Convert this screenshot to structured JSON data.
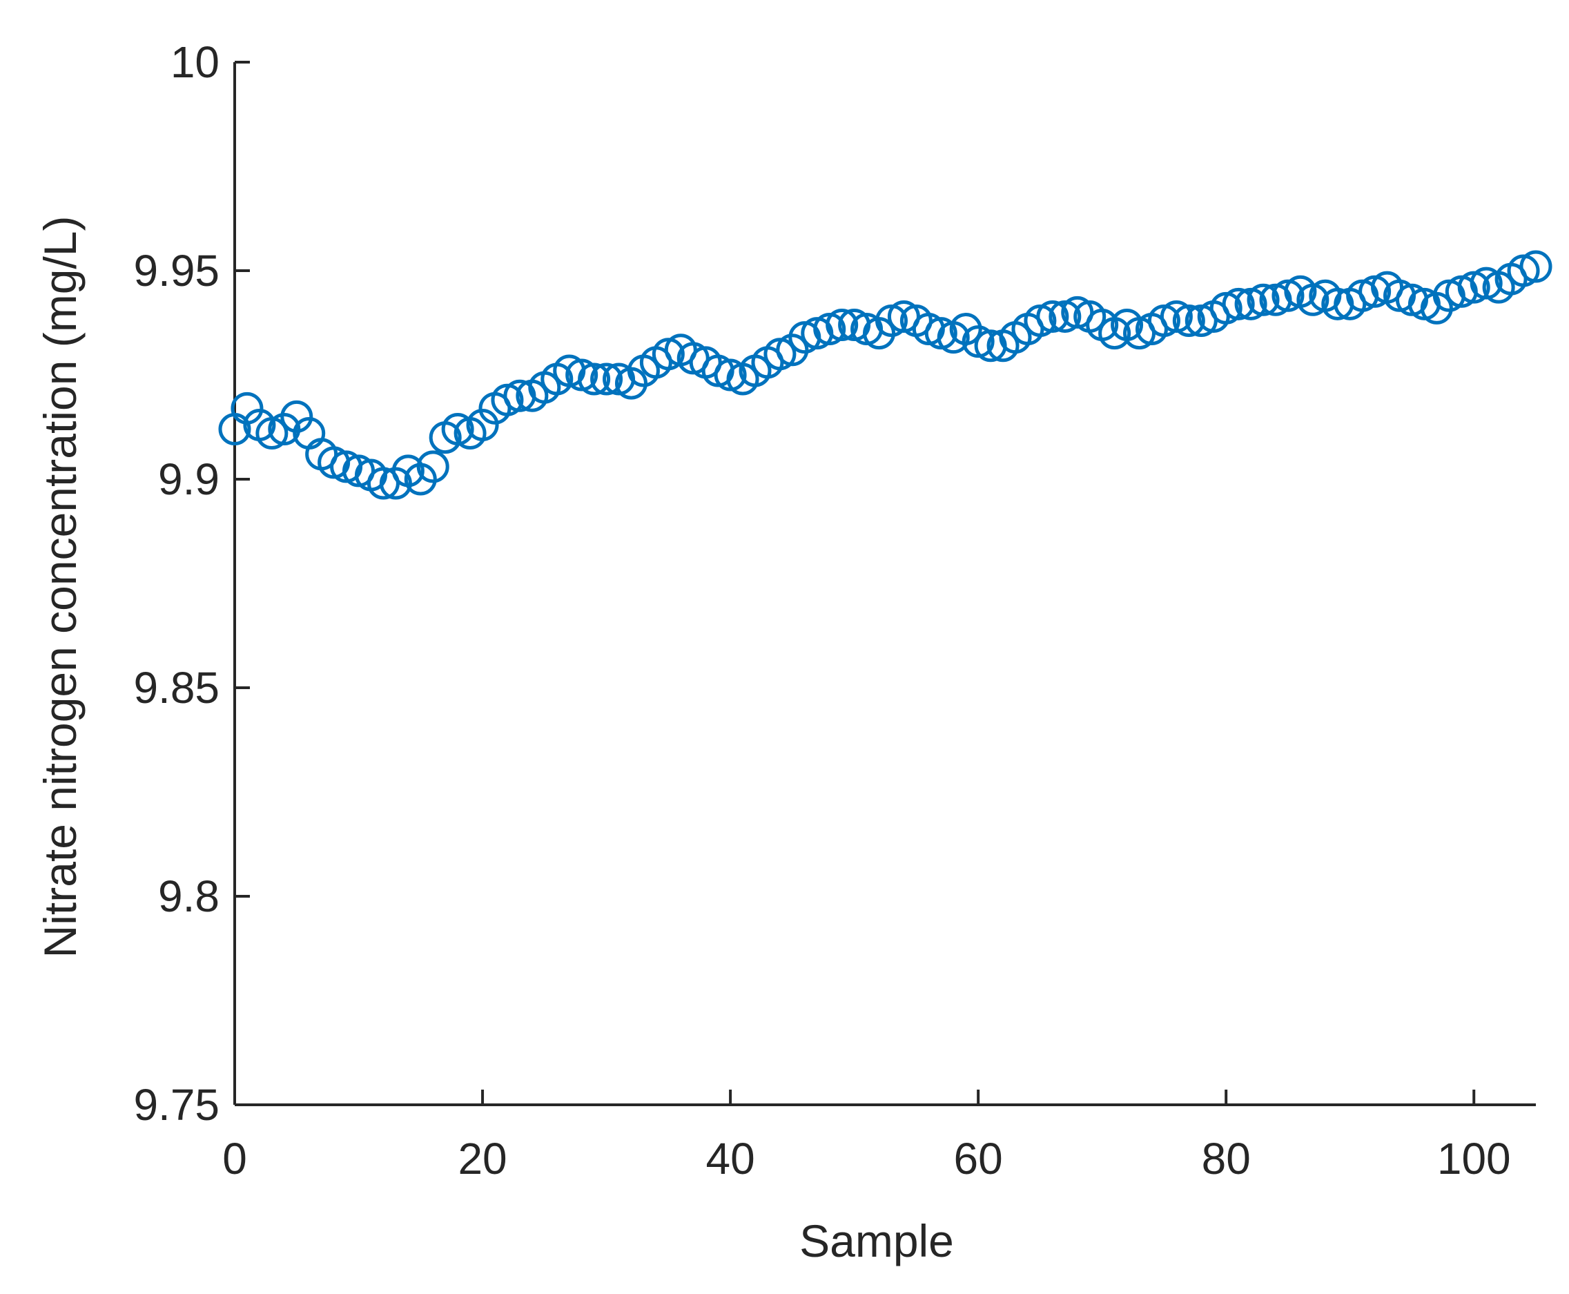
{
  "chart_data": {
    "type": "scatter",
    "title": "",
    "xlabel": "Sample",
    "ylabel": "Nitrate nitrogen concentration (mg/L)",
    "xlim": [
      0,
      105
    ],
    "ylim": [
      9.75,
      10
    ],
    "xticks": [
      0,
      20,
      40,
      60,
      80,
      100
    ],
    "xtick_labels": [
      "0",
      "20",
      "40",
      "60",
      "80",
      "100"
    ],
    "yticks": [
      9.75,
      9.8,
      9.85,
      9.9,
      9.95,
      10
    ],
    "ytick_labels": [
      "9.75",
      "9.8",
      "9.85",
      "9.9",
      "9.95",
      "10"
    ],
    "grid": false,
    "marker": "circle-open",
    "color": "#0072BD",
    "series": [
      {
        "x": [
          0,
          1,
          2,
          3,
          4,
          5,
          6,
          7,
          8,
          9,
          10,
          11,
          12,
          13,
          14,
          15,
          16,
          17,
          18,
          19,
          20,
          21,
          22,
          23,
          24,
          25,
          26,
          27,
          28,
          29,
          30,
          31,
          32,
          33,
          34,
          35,
          36,
          37,
          38,
          39,
          40,
          41,
          42,
          43,
          44,
          45,
          46,
          47,
          48,
          49,
          50,
          51,
          52,
          53,
          54,
          55,
          56,
          57,
          58,
          59,
          60,
          61,
          62,
          63,
          64,
          65,
          66,
          67,
          68,
          69,
          70,
          71,
          72,
          73,
          74,
          75,
          76,
          77,
          78,
          79,
          80,
          81,
          82,
          83,
          84,
          85,
          86,
          87,
          88,
          89,
          90,
          91,
          92,
          93,
          94,
          95,
          96,
          97,
          98,
          99,
          100,
          101,
          102,
          103,
          104,
          105
        ],
        "y": [
          9.912,
          9.917,
          9.913,
          9.911,
          9.912,
          9.915,
          9.911,
          9.906,
          9.904,
          9.903,
          9.902,
          9.901,
          9.899,
          9.899,
          9.902,
          9.9,
          9.903,
          9.91,
          9.912,
          9.911,
          9.913,
          9.917,
          9.919,
          9.92,
          9.92,
          9.922,
          9.924,
          9.926,
          9.925,
          9.924,
          9.924,
          9.924,
          9.923,
          9.926,
          9.928,
          9.93,
          9.931,
          9.929,
          9.928,
          9.926,
          9.925,
          9.924,
          9.926,
          9.928,
          9.93,
          9.931,
          9.934,
          9.935,
          9.936,
          9.937,
          9.937,
          9.936,
          9.935,
          9.938,
          9.939,
          9.938,
          9.936,
          9.935,
          9.934,
          9.936,
          9.933,
          9.932,
          9.932,
          9.934,
          9.936,
          9.938,
          9.939,
          9.939,
          9.94,
          9.939,
          9.937,
          9.935,
          9.937,
          9.935,
          9.936,
          9.938,
          9.939,
          9.938,
          9.938,
          9.939,
          9.941,
          9.942,
          9.942,
          9.943,
          9.943,
          9.944,
          9.945,
          9.943,
          9.944,
          9.942,
          9.942,
          9.944,
          9.945,
          9.946,
          9.944,
          9.943,
          9.942,
          9.941,
          9.944,
          9.945,
          9.946,
          9.947,
          9.946,
          9.948,
          9.95,
          9.951
        ]
      }
    ]
  }
}
